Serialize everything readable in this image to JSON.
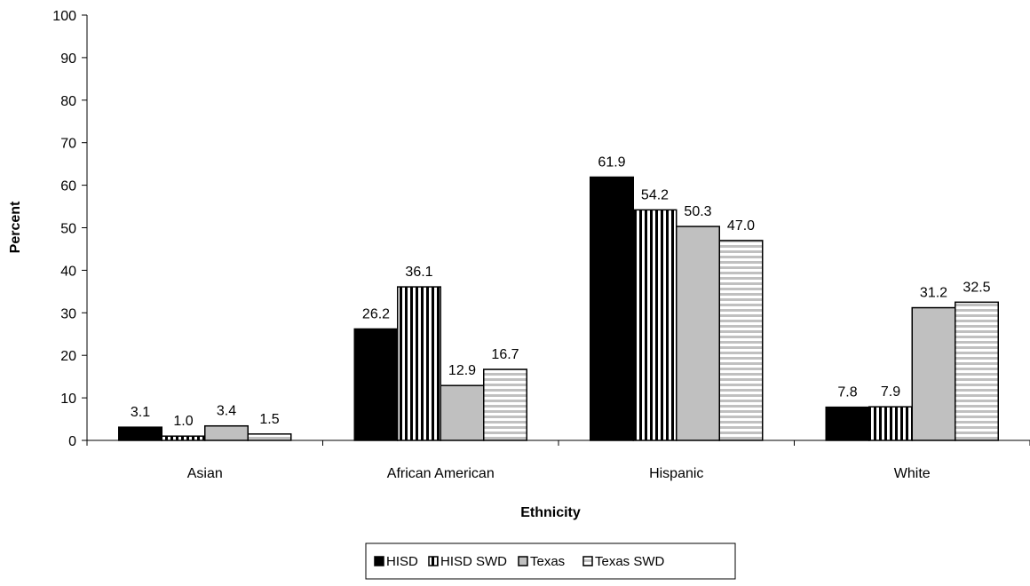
{
  "chart_data": {
    "type": "bar",
    "xlabel": "Ethnicity",
    "ylabel": "Percent",
    "ylim": [
      0,
      100
    ],
    "yticks": [
      0,
      10,
      20,
      30,
      40,
      50,
      60,
      70,
      80,
      90,
      100
    ],
    "categories": [
      "Asian",
      "African American",
      "Hispanic",
      "White"
    ],
    "series": [
      {
        "name": "HISD",
        "values": [
          3.1,
          26.2,
          61.9,
          7.8
        ],
        "labels": [
          "3.1",
          "26.2",
          "61.9",
          "7.8"
        ],
        "fill": "#000000",
        "pattern": "solid"
      },
      {
        "name": "HISD SWD",
        "values": [
          1.0,
          36.1,
          54.2,
          7.9
        ],
        "labels": [
          "1.0",
          "36.1",
          "54.2",
          "7.9"
        ],
        "fill": "#000000",
        "pattern": "vertical-stripes"
      },
      {
        "name": "Texas",
        "values": [
          3.4,
          12.9,
          50.3,
          31.2
        ],
        "labels": [
          "3.4",
          "12.9",
          "50.3",
          "31.2"
        ],
        "fill": "#c0c0c0",
        "pattern": "solid"
      },
      {
        "name": "Texas SWD",
        "values": [
          1.5,
          16.7,
          47.0,
          32.5
        ],
        "labels": [
          "1.5",
          "16.7",
          "47.0",
          "32.5"
        ],
        "fill": "#c0c0c0",
        "pattern": "horizontal-stripes"
      }
    ],
    "grid": false,
    "legend_position": "bottom-center"
  }
}
